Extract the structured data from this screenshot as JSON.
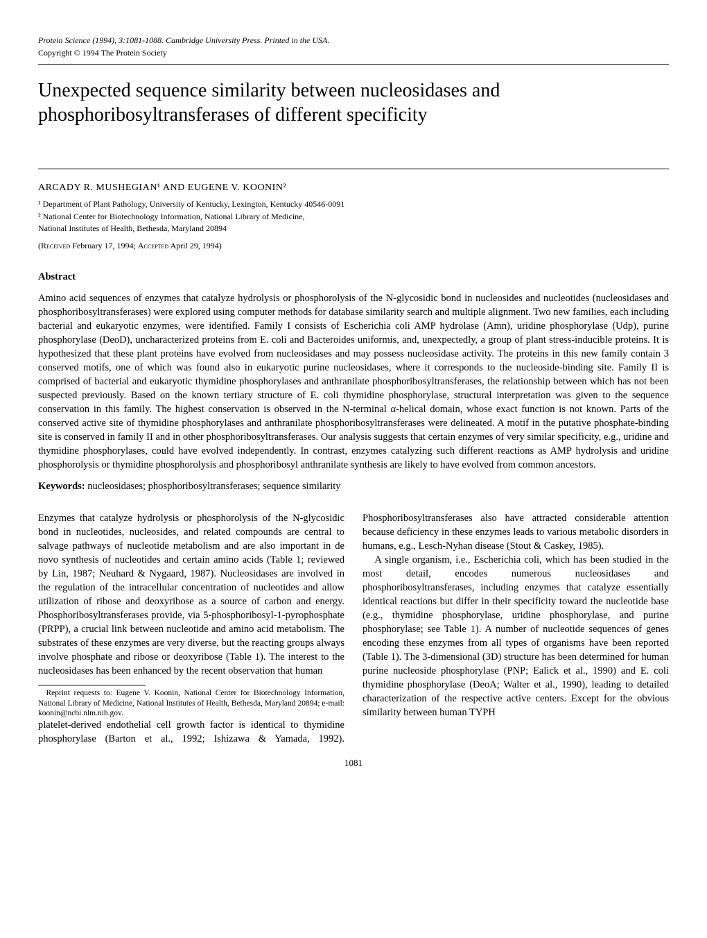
{
  "journal_line": "Protein Science (1994), 3:1081-1088. Cambridge University Press. Printed in the USA.",
  "copyright_line": "Copyright © 1994 The Protein Society",
  "title": "Unexpected sequence similarity between nucleosidases and phosphoribosyltransferases of different specificity",
  "authors": "ARCADY R. MUSHEGIAN¹ AND EUGENE V. KOONIN²",
  "affiliations": [
    "¹ Department of Plant Pathology, University of Kentucky, Lexington, Kentucky 40546-0091",
    "² National Center for Biotechnology Information, National Library of Medicine,",
    "  National Institutes of Health, Bethesda, Maryland 20894"
  ],
  "received_prefix": "(Received",
  "received_date": " February 17, 1994; ",
  "accepted_prefix": "Accepted",
  "accepted_date": " April 29, 1994)",
  "abstract_heading": "Abstract",
  "abstract_body": "Amino acid sequences of enzymes that catalyze hydrolysis or phosphorolysis of the N-glycosidic bond in nucleosides and nucleotides (nucleosidases and phosphoribosyltransferases) were explored using computer methods for database similarity search and multiple alignment. Two new families, each including bacterial and eukaryotic enzymes, were identified. Family I consists of Escherichia coli AMP hydrolase (Amn), uridine phosphorylase (Udp), purine phosphorylase (DeoD), uncharacterized proteins from E. coli and Bacteroides uniformis, and, unexpectedly, a group of plant stress-inducible proteins. It is hypothesized that these plant proteins have evolved from nucleosidases and may possess nucleosidase activity. The proteins in this new family contain 3 conserved motifs, one of which was found also in eukaryotic purine nucleosidases, where it corresponds to the nucleoside-binding site. Family II is comprised of bacterial and eukaryotic thymidine phosphorylases and anthranilate phosphoribosyltransferases, the relationship between which has not been suspected previously. Based on the known tertiary structure of E. coli thymidine phosphorylase, structural interpretation was given to the sequence conservation in this family. The highest conservation is observed in the N-terminal α-helical domain, whose exact function is not known. Parts of the conserved active site of thymidine phosphorylases and anthranilate phosphoribosyltransferases were delineated. A motif in the putative phosphate-binding site is conserved in family II and in other phosphoribosyltransferases. Our analysis suggests that certain enzymes of very similar specificity, e.g., uridine and thymidine phosphorylases, could have evolved independently. In contrast, enzymes catalyzing such different reactions as AMP hydrolysis and uridine phosphorolysis or thymidine phosphorolysis and phosphoribosyl anthranilate synthesis are likely to have evolved from common ancestors.",
  "keywords_label": "Keywords:",
  "keywords_text": " nucleosidases; phosphoribosyltransferases; sequence similarity",
  "body_p1": "Enzymes that catalyze hydrolysis or phosphorolysis of the N-glycosidic bond in nucleotides, nucleosides, and related compounds are central to salvage pathways of nucleotide metabolism and are also important in de novo synthesis of nucleotides and certain amino acids (Table 1; reviewed by Lin, 1987; Neuhard & Nygaard, 1987). Nucleosidases are involved in the regulation of the intracellular concentration of nucleotides and allow utilization of ribose and deoxyribose as a source of carbon and energy. Phosphoribosyltransferases provide, via 5-phosphoribosyl-1-pyrophosphate (PRPP), a crucial link between nucleotide and amino acid metabolism. The substrates of these enzymes are very diverse, but the reacting groups always involve phosphate and ribose or deoxyribose (Table 1). The interest to the nucleosidases has been enhanced by the recent observation that human",
  "footnote": "Reprint requests to: Eugene V. Koonin, National Center for Biotechnology Information, National Library of Medicine, National Institutes of Health, Bethesda, Maryland 20894; e-mail: koonin@ncbi.nlm.nih.gov.",
  "body_p2": "platelet-derived endothelial cell growth factor is identical to thymidine phosphorylase (Barton et al., 1992; Ishizawa & Yamada, 1992). Phosphoribosyltransferases also have attracted considerable attention because deficiency in these enzymes leads to various metabolic disorders in humans, e.g., Lesch-Nyhan disease (Stout & Caskey, 1985).",
  "body_p3": "A single organism, i.e., Escherichia coli, which has been studied in the most detail, encodes numerous nucleosidases and phosphoribosyltransferases, including enzymes that catalyze essentially identical reactions but differ in their specificity toward the nucleotide base (e.g., thymidine phosphorylase, uridine phosphorylase, and purine phosphorylase; see Table 1). A number of nucleotide sequences of genes encoding these enzymes from all types of organisms have been reported (Table 1). The 3-dimensional (3D) structure has been determined for human purine nucleoside phosphorylase (PNP; Ealick et al., 1990) and E. coli thymidine phosphorylase (DeoA; Walter et al., 1990), leading to detailed characterization of the respective active centers. Except for the obvious similarity between human TYPH",
  "page_number": "1081"
}
